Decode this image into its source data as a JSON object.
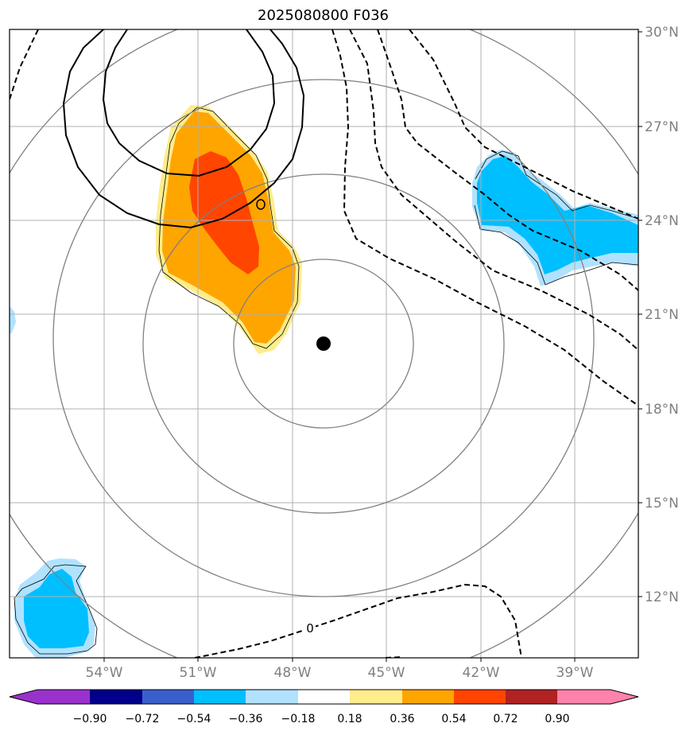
{
  "title": "2025080800 F036",
  "map": {
    "lat_ticks": [
      "30°N",
      "27°N",
      "24°N",
      "21°N",
      "18°N",
      "15°N",
      "12°N"
    ],
    "lon_ticks": [
      "54°W",
      "51°W",
      "48°W",
      "45°W",
      "42°W",
      "39°W"
    ],
    "center_marker": {
      "lat": 20.0,
      "lon": -47.0
    },
    "range_rings": 4,
    "contour_labels": [
      "0",
      "0"
    ]
  },
  "colorbar": {
    "ticks": [
      "−0.90",
      "−0.72",
      "−0.54",
      "−0.36",
      "−0.18",
      "0.18",
      "0.36",
      "0.54",
      "0.72",
      "0.90"
    ],
    "colors": [
      "#9932cc",
      "#00008b",
      "#3a5fcd",
      "#00bfff",
      "#b0e2ff",
      "#ffffff",
      "#ffec8b",
      "#ffa500",
      "#ff4500",
      "#b22222",
      "#ff82ab"
    ]
  },
  "colors": {
    "grid": "#b0b0b0",
    "ring": "#808080",
    "axis_text": "#808080"
  }
}
